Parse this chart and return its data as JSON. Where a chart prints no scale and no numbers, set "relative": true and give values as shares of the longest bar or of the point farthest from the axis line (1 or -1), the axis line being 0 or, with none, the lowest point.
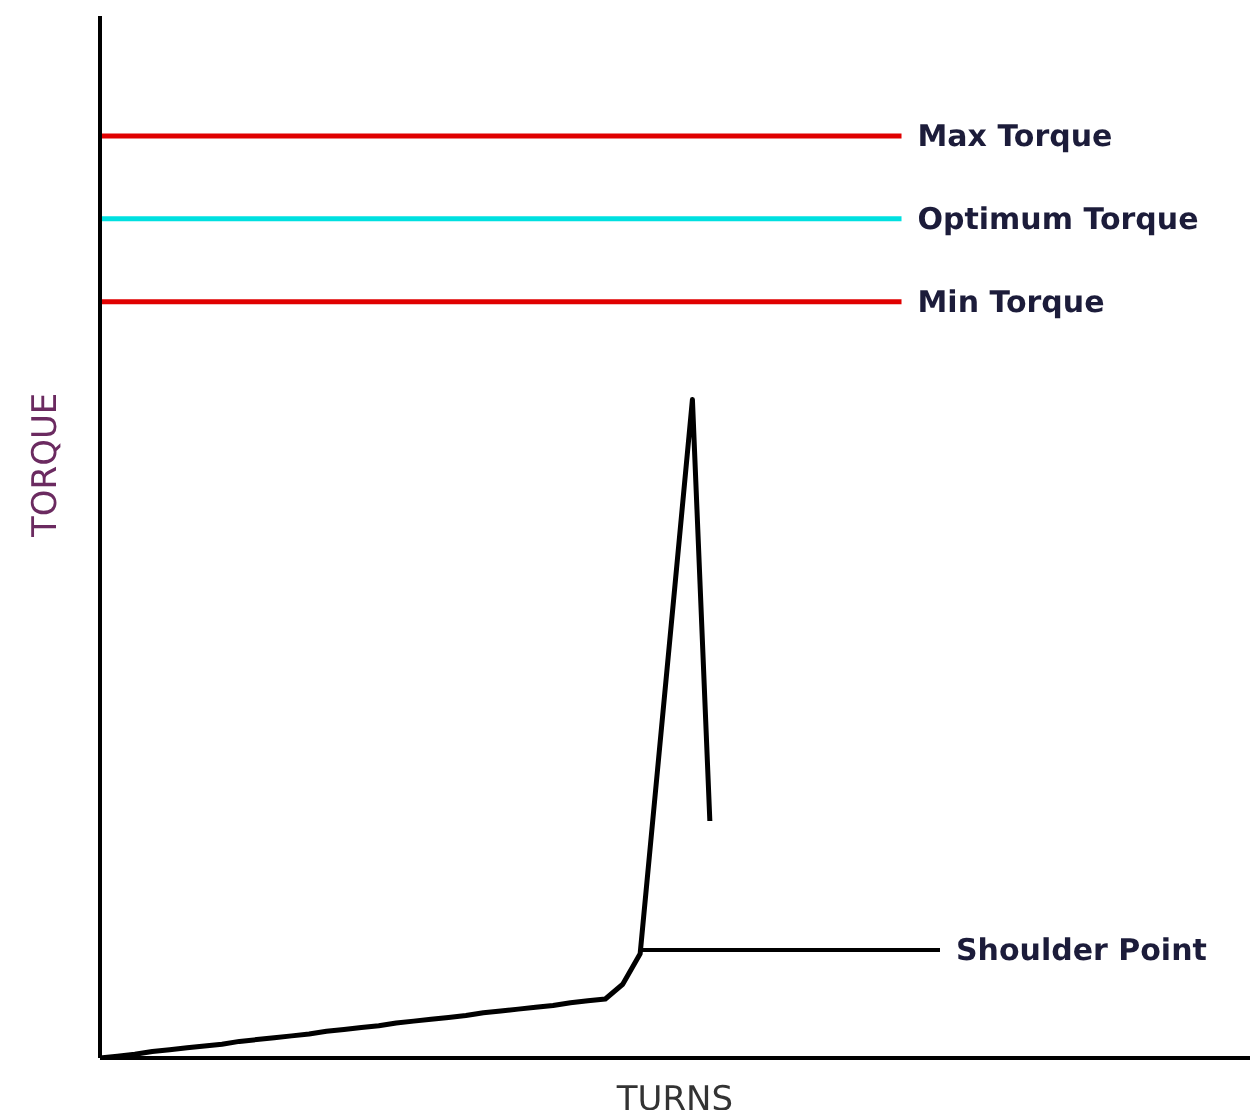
{
  "chart_data": {
    "type": "line",
    "relative": true,
    "xlabel": "TURNS",
    "ylabel": "TORQUE",
    "tick_labels": false,
    "grid": false,
    "legend": false,
    "marker": "none",
    "line_style": "solid",
    "categories": [
      null,
      null,
      null,
      null,
      null,
      null,
      null,
      null,
      null,
      null,
      null,
      null,
      null,
      null,
      null,
      null,
      null,
      null,
      null,
      null,
      null,
      null,
      null,
      null,
      null,
      null,
      null,
      null,
      null,
      null,
      null,
      null,
      null,
      null,
      null,
      null,
      null,
      null,
      null,
      null,
      null,
      null,
      null,
      null,
      null,
      null,
      null,
      null,
      null,
      null,
      null,
      null,
      null,
      null,
      null,
      null,
      null,
      null,
      null,
      null,
      null,
      null,
      null,
      null,
      null,
      null,
      null
    ],
    "series": [
      {
        "name": "Max Torque",
        "color": "#e00000",
        "values": [
          1,
          1,
          1,
          1,
          1,
          1,
          1,
          1,
          1,
          1,
          1,
          1,
          1,
          1,
          1,
          1,
          1,
          1,
          1,
          1,
          1,
          1,
          1,
          1,
          1,
          1,
          1,
          1,
          1,
          1,
          1,
          1,
          1,
          1,
          1,
          1,
          1,
          1,
          1,
          1,
          1,
          1,
          1,
          1,
          1,
          1,
          1,
          null,
          null,
          null,
          null,
          null,
          null,
          null,
          null,
          null,
          null,
          null,
          null,
          null,
          null,
          null,
          null,
          null,
          null,
          null,
          null
        ]
      },
      {
        "name": "Optimum Torque",
        "color": "#00e0e0",
        "values": [
          0.91,
          0.91,
          0.91,
          0.91,
          0.91,
          0.91,
          0.91,
          0.91,
          0.91,
          0.91,
          0.91,
          0.91,
          0.91,
          0.91,
          0.91,
          0.91,
          0.91,
          0.91,
          0.91,
          0.91,
          0.91,
          0.91,
          0.91,
          0.91,
          0.91,
          0.91,
          0.91,
          0.91,
          0.91,
          0.91,
          0.91,
          0.91,
          0.91,
          0.91,
          0.91,
          0.91,
          0.91,
          0.91,
          0.91,
          0.91,
          0.91,
          0.91,
          0.91,
          0.91,
          0.91,
          0.91,
          0.91,
          null,
          null,
          null,
          null,
          null,
          null,
          null,
          null,
          null,
          null,
          null,
          null,
          null,
          null,
          null,
          null,
          null,
          null,
          null,
          null
        ]
      },
      {
        "name": "Min Torque",
        "color": "#e00000",
        "values": [
          0.82,
          0.82,
          0.82,
          0.82,
          0.82,
          0.82,
          0.82,
          0.82,
          0.82,
          0.82,
          0.82,
          0.82,
          0.82,
          0.82,
          0.82,
          0.82,
          0.82,
          0.82,
          0.82,
          0.82,
          0.82,
          0.82,
          0.82,
          0.82,
          0.82,
          0.82,
          0.82,
          0.82,
          0.82,
          0.82,
          0.82,
          0.82,
          0.82,
          0.82,
          0.82,
          0.82,
          0.82,
          0.82,
          0.82,
          0.82,
          0.82,
          0.82,
          0.82,
          0.82,
          0.82,
          0.82,
          0.82,
          null,
          null,
          null,
          null,
          null,
          null,
          null,
          null,
          null,
          null,
          null,
          null,
          null,
          null,
          null,
          null,
          null,
          null,
          null,
          null
        ]
      },
      {
        "color": "#000000",
        "values": [
          0,
          0.002,
          0.004,
          0.007,
          0.009,
          0.011,
          0.013,
          0.015,
          0.018,
          0.02,
          0.022,
          0.024,
          0.026,
          0.029,
          0.031,
          0.033,
          0.035,
          0.038,
          0.04,
          0.042,
          0.044,
          0.046,
          0.049,
          0.051,
          0.053,
          0.055,
          0.057,
          0.06,
          0.062,
          0.064,
          0.08,
          0.113,
          0.313,
          0.513,
          0.714,
          0.257,
          null,
          null,
          null,
          null,
          null,
          null,
          null,
          null,
          null,
          null,
          null,
          null,
          null,
          null,
          null,
          null,
          null,
          null,
          null,
          null,
          null,
          null,
          null,
          null,
          null,
          null,
          null,
          null,
          null,
          null,
          null
        ]
      }
    ],
    "annotations": [
      "Shoulder Point"
    ]
  }
}
